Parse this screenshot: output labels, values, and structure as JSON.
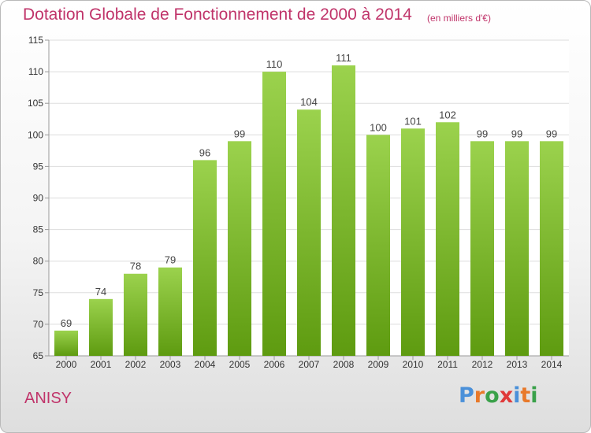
{
  "header": {
    "title": "Dotation Globale de Fonctionnement de 2000 à 2014",
    "unit": "(en milliers d'€)"
  },
  "footer": {
    "commune": "ANISY",
    "logo_text": "Proxiti",
    "logo_colors": [
      "#4a90d9",
      "#e8792a",
      "#3aa14a",
      "#e03a3a",
      "#4a90d9",
      "#e8792a",
      "#3aa14a"
    ]
  },
  "colors": {
    "title": "#c0346a",
    "bar_top": "#9bd24d",
    "bar_bottom": "#5e9b10",
    "grid": "#dddddd"
  },
  "chart_data": {
    "type": "bar",
    "title": "Dotation Globale de Fonctionnement de 2000 à 2014",
    "xlabel": "",
    "ylabel": "",
    "categories": [
      "2000",
      "2001",
      "2002",
      "2003",
      "2004",
      "2005",
      "2006",
      "2007",
      "2008",
      "2009",
      "2010",
      "2011",
      "2012",
      "2013",
      "2014"
    ],
    "values": [
      69,
      74,
      78,
      79,
      96,
      99,
      110,
      104,
      111,
      100,
      101,
      102,
      99,
      99,
      99
    ],
    "ylim": [
      65,
      115
    ],
    "yticks": [
      65,
      70,
      75,
      80,
      85,
      90,
      95,
      100,
      105,
      110,
      115
    ],
    "grid": true,
    "data_labels": true
  }
}
